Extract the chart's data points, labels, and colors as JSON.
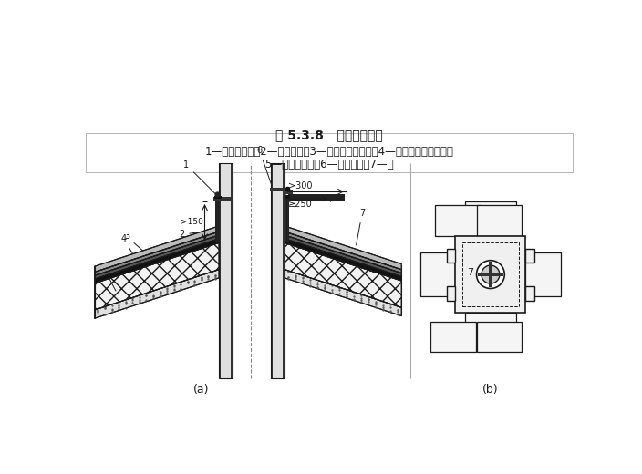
{
  "title": "图 5.3.8   穿出屋面管道",
  "caption_line1": "1—成品泛水件；2—防水垫层；3—防水垫层附加层；4—保护层（持钉层）；",
  "caption_line2": "5—保温隔热层；6—密封材料；7—瓦",
  "label_a": "(a)",
  "label_b": "(b)",
  "line_color": "#1a1a1a",
  "dim_150": ">150",
  "dim_300": ">300",
  "dim_250": "≥250"
}
